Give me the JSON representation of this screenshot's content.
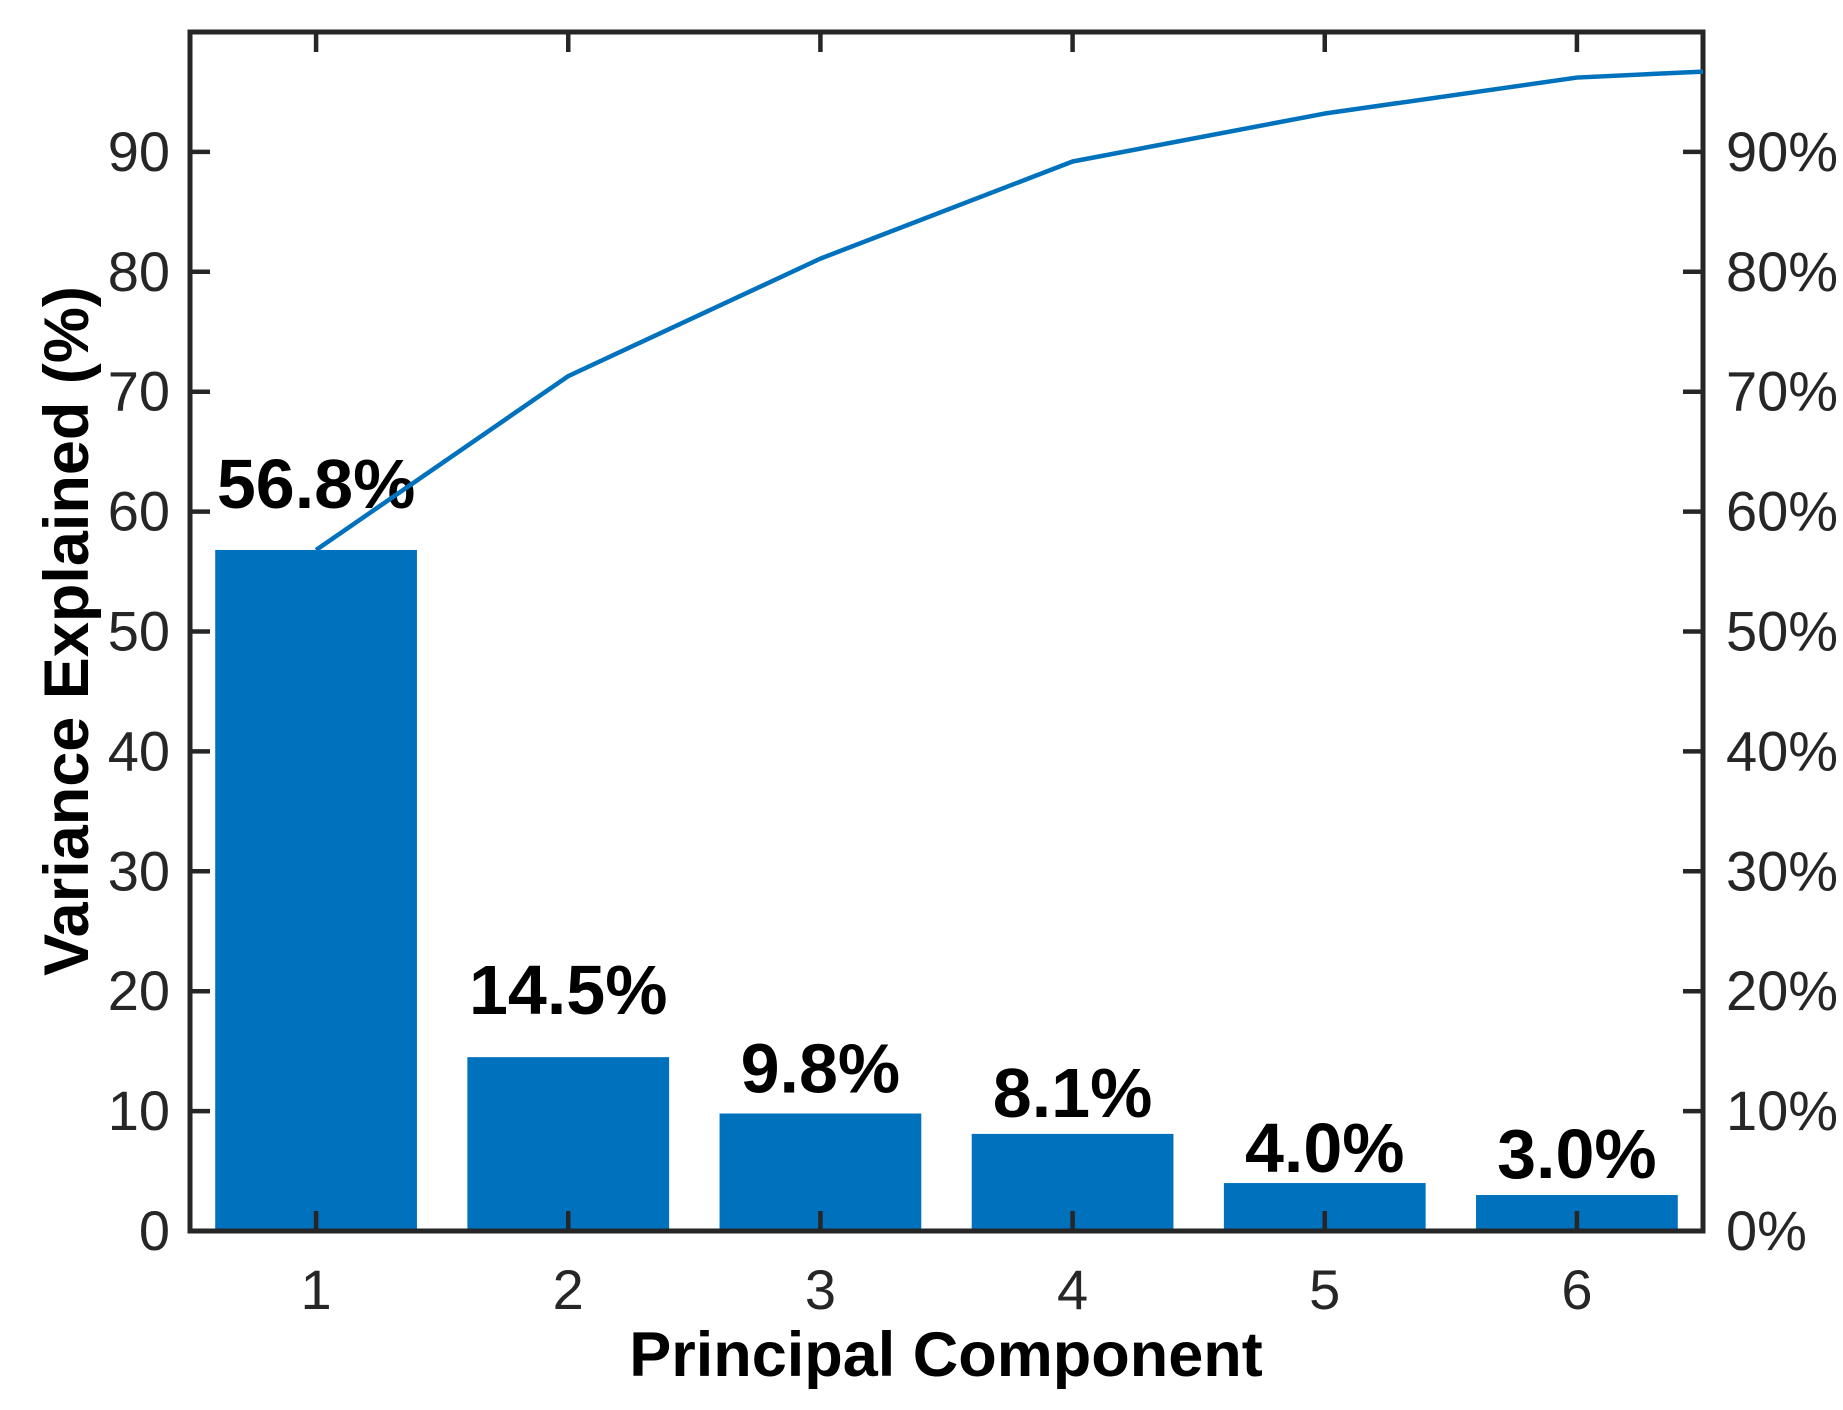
{
  "figure": {
    "background": "#ffffff"
  },
  "chart_data": {
    "type": "bar",
    "subtype": "pareto",
    "title": "",
    "xlabel": "Principal Component",
    "ylabel": "Variance Explained (%)",
    "categories": [
      "1",
      "2",
      "3",
      "4",
      "5",
      "6"
    ],
    "values": [
      56.8,
      14.5,
      9.8,
      8.1,
      4.0,
      3.0
    ],
    "bar_labels": [
      "56.8%",
      "14.5%",
      "9.8%",
      "8.1%",
      "4.0%",
      "3.0%"
    ],
    "series": [
      {
        "name": "variance-explained-bars",
        "type": "bar",
        "x": [
          1,
          2,
          3,
          4,
          5,
          6
        ],
        "values": [
          56.8,
          14.5,
          9.8,
          8.1,
          4.0,
          3.0
        ]
      },
      {
        "name": "cumulative-variance-line",
        "type": "line",
        "x": [
          1,
          2,
          3,
          4,
          5,
          6,
          6.5
        ],
        "values": [
          56.8,
          71.3,
          81.1,
          89.2,
          93.2,
          96.2,
          96.7
        ]
      }
    ],
    "cumulative_line": {
      "x": [
        1,
        2,
        3,
        4,
        5,
        6,
        6.5
      ],
      "y": [
        56.8,
        71.3,
        81.1,
        89.2,
        93.2,
        96.2,
        96.7
      ]
    },
    "xlim": [
      0.5,
      6.5
    ],
    "ylim": [
      0,
      100
    ],
    "x_tick_values": [
      1,
      2,
      3,
      4,
      5,
      6
    ],
    "x_tick_labels": [
      "1",
      "2",
      "3",
      "4",
      "5",
      "6"
    ],
    "y_tick_values": [
      0,
      10,
      20,
      30,
      40,
      50,
      60,
      70,
      80,
      90
    ],
    "y_tick_labels_left": [
      "0",
      "10",
      "20",
      "30",
      "40",
      "50",
      "60",
      "70",
      "80",
      "90"
    ],
    "y_tick_labels_right": [
      "0%",
      "10%",
      "20%",
      "30%",
      "40%",
      "50%",
      "60%",
      "70%",
      "80%",
      "90%"
    ],
    "grid": false,
    "legend_position": "none",
    "colors": {
      "bar": "#0072BD",
      "line": "#0072BD",
      "axis": "#262626",
      "tick_label": "#262626",
      "value_label": "#000000"
    }
  }
}
